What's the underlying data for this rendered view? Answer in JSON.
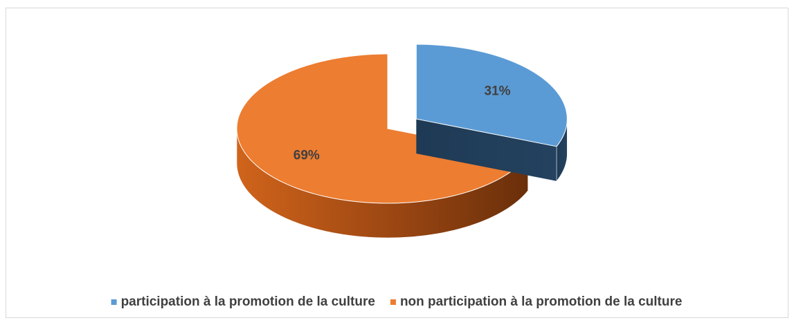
{
  "chart_data": {
    "type": "pie",
    "categories": [
      "participation à la promotion de la culture",
      "non participation à la promotion de la culture"
    ],
    "values": [
      31,
      69
    ],
    "value_labels": [
      "31%",
      "69%"
    ],
    "colors": [
      "#5b9bd5",
      "#ed7d31"
    ],
    "legend": "bottom"
  }
}
